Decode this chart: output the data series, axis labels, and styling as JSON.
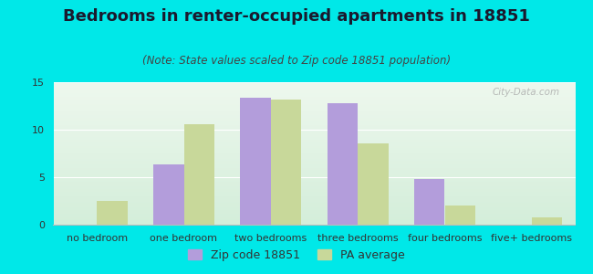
{
  "title": "Bedrooms in renter-occupied apartments in 18851",
  "subtitle": "(Note: State values scaled to Zip code 18851 population)",
  "categories": [
    "no bedroom",
    "one bedroom",
    "two bedrooms",
    "three bedrooms",
    "four bedrooms",
    "five+ bedrooms"
  ],
  "zip_values": [
    0,
    6.3,
    13.4,
    12.8,
    4.8,
    0
  ],
  "pa_values": [
    2.5,
    10.6,
    13.2,
    8.6,
    2.0,
    0.8
  ],
  "zip_color": "#b39ddb",
  "pa_color": "#c8d89a",
  "background_outer": "#00e8e8",
  "ylim": [
    0,
    15
  ],
  "yticks": [
    0,
    5,
    10,
    15
  ],
  "legend_zip_label": "Zip code 18851",
  "legend_pa_label": "PA average",
  "bar_width": 0.35,
  "title_fontsize": 13,
  "subtitle_fontsize": 8.5,
  "tick_fontsize": 8,
  "legend_fontsize": 9
}
